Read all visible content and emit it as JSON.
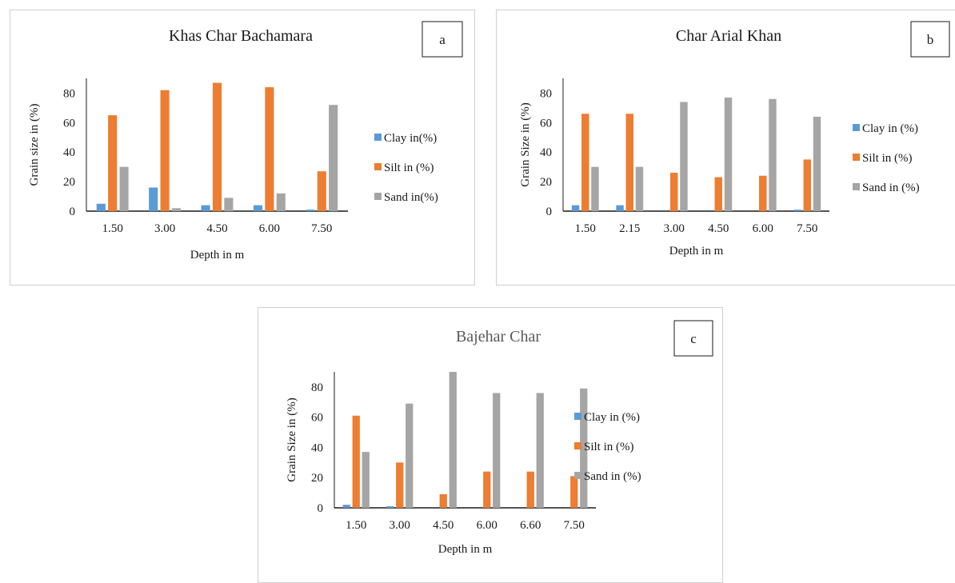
{
  "chart_data": [
    {
      "id": "a",
      "type": "bar",
      "title": "Khas Char Bachamara",
      "label": "a",
      "xlabel": "Depth in m",
      "ylabel": "Grain size in (%)",
      "categories": [
        "1.50",
        "3.00",
        "4.50",
        "6.00",
        "7.50"
      ],
      "ylim": [
        0,
        90
      ],
      "yticks": [
        "0",
        "20",
        "40",
        "60",
        "80"
      ],
      "legend_position": "right",
      "series": [
        {
          "name": "Clay in(%)",
          "color": "#5b9bd5",
          "values": [
            5,
            16,
            4,
            4,
            1
          ]
        },
        {
          "name": "Silt in (%)",
          "color": "#ed7d31",
          "values": [
            65,
            82,
            87,
            84,
            27
          ]
        },
        {
          "name": "Sand in(%)",
          "color": "#a5a5a5",
          "values": [
            30,
            2,
            9,
            12,
            72
          ]
        }
      ]
    },
    {
      "id": "b",
      "type": "bar",
      "title": "Char Arial Khan",
      "label": "b",
      "xlabel": "Depth in m",
      "ylabel": "Grain Size in (%)",
      "categories": [
        "1.50",
        "2.15",
        "3.00",
        "4.50",
        "6.00",
        "7.50"
      ],
      "ylim": [
        0,
        90
      ],
      "yticks": [
        "0",
        "20",
        "40",
        "60",
        "80"
      ],
      "legend_position": "right",
      "series": [
        {
          "name": "Clay in (%)",
          "color": "#5b9bd5",
          "values": [
            4,
            4,
            0,
            0,
            0,
            1
          ]
        },
        {
          "name": "Silt in (%)",
          "color": "#ed7d31",
          "values": [
            66,
            66,
            26,
            23,
            24,
            35
          ]
        },
        {
          "name": "Sand in (%)",
          "color": "#a5a5a5",
          "values": [
            30,
            30,
            74,
            77,
            76,
            64
          ]
        }
      ]
    },
    {
      "id": "c",
      "type": "bar",
      "title": "Bajehar Char",
      "label": "c",
      "xlabel": "Depth in m",
      "ylabel": "Grain Size in (%)",
      "categories": [
        "1.50",
        "3.00",
        "4.50",
        "6.00",
        "6.60",
        "7.50"
      ],
      "ylim": [
        0,
        90
      ],
      "yticks": [
        "0",
        "20",
        "40",
        "60",
        "80"
      ],
      "legend_position": "right",
      "series": [
        {
          "name": "Clay in (%)",
          "color": "#5b9bd5",
          "values": [
            2,
            1,
            0,
            0,
            0,
            0
          ]
        },
        {
          "name": "Silt in (%)",
          "color": "#ed7d31",
          "values": [
            61,
            30,
            9,
            24,
            24,
            21
          ]
        },
        {
          "name": "Sand in (%)",
          "color": "#a5a5a5",
          "values": [
            37,
            69,
            90,
            76,
            76,
            79
          ]
        }
      ]
    }
  ]
}
